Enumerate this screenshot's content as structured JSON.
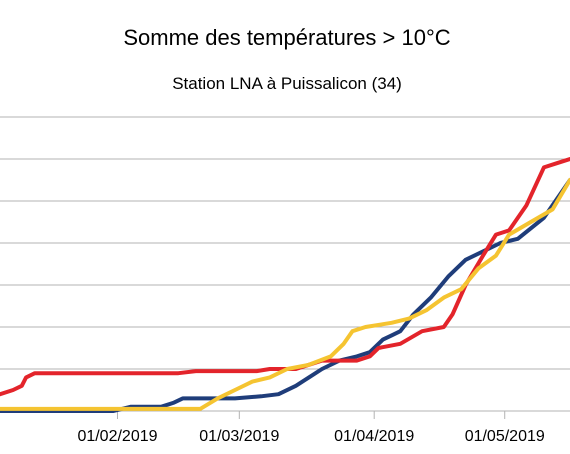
{
  "chart_data": {
    "type": "line",
    "title": "Somme des températures > 10°C",
    "subtitle": "Station LNA à Puissalicon (34)",
    "xlabel": "",
    "ylabel": "",
    "x_tick_labels": [
      "01/02/2019",
      "01/03/2019",
      "01/04/2019",
      "01/05/2019"
    ],
    "x_tick_dates": [
      "2019-02-01",
      "2019-03-01",
      "2019-04-01",
      "2019-05-01"
    ],
    "x_range": [
      "2019-01-05",
      "2019-05-16"
    ],
    "y_range": [
      0,
      7
    ],
    "y_gridlines": [
      0,
      1,
      2,
      3,
      4,
      5,
      6,
      7
    ],
    "y_tick_labels_visible": false,
    "grid": true,
    "legend": "none",
    "series": [
      {
        "color": "#1f3d7a",
        "points": [
          [
            "2019-01-05",
            0.0
          ],
          [
            "2019-01-31",
            0.0
          ],
          [
            "2019-02-02",
            0.05
          ],
          [
            "2019-02-04",
            0.1
          ],
          [
            "2019-02-11",
            0.1
          ],
          [
            "2019-02-14",
            0.2
          ],
          [
            "2019-02-16",
            0.3
          ],
          [
            "2019-02-28",
            0.3
          ],
          [
            "2019-03-06",
            0.35
          ],
          [
            "2019-03-10",
            0.4
          ],
          [
            "2019-03-14",
            0.6
          ],
          [
            "2019-03-17",
            0.8
          ],
          [
            "2019-03-20",
            1.0
          ],
          [
            "2019-03-24",
            1.2
          ],
          [
            "2019-03-28",
            1.3
          ],
          [
            "2019-03-31",
            1.4
          ],
          [
            "2019-04-03",
            1.7
          ],
          [
            "2019-04-05",
            1.8
          ],
          [
            "2019-04-07",
            1.9
          ],
          [
            "2019-04-10",
            2.3
          ],
          [
            "2019-04-14",
            2.7
          ],
          [
            "2019-04-18",
            3.2
          ],
          [
            "2019-04-22",
            3.6
          ],
          [
            "2019-04-26",
            3.8
          ],
          [
            "2019-04-30",
            4.0
          ],
          [
            "2019-05-04",
            4.1
          ],
          [
            "2019-05-10",
            4.6
          ],
          [
            "2019-05-16",
            5.5
          ]
        ]
      },
      {
        "color": "#e3242b",
        "points": [
          [
            "2019-01-05",
            0.4
          ],
          [
            "2019-01-08",
            0.5
          ],
          [
            "2019-01-10",
            0.6
          ],
          [
            "2019-01-11",
            0.8
          ],
          [
            "2019-01-13",
            0.9
          ],
          [
            "2019-01-31",
            0.9
          ],
          [
            "2019-02-15",
            0.9
          ],
          [
            "2019-02-19",
            0.95
          ],
          [
            "2019-03-05",
            0.95
          ],
          [
            "2019-03-08",
            1.0
          ],
          [
            "2019-03-14",
            1.0
          ],
          [
            "2019-03-17",
            1.1
          ],
          [
            "2019-03-20",
            1.2
          ],
          [
            "2019-03-28",
            1.2
          ],
          [
            "2019-03-31",
            1.3
          ],
          [
            "2019-04-02",
            1.5
          ],
          [
            "2019-04-07",
            1.6
          ],
          [
            "2019-04-12",
            1.9
          ],
          [
            "2019-04-17",
            2.0
          ],
          [
            "2019-04-19",
            2.3
          ],
          [
            "2019-04-22",
            3.0
          ],
          [
            "2019-04-26",
            3.7
          ],
          [
            "2019-04-29",
            4.2
          ],
          [
            "2019-05-02",
            4.3
          ],
          [
            "2019-05-06",
            4.9
          ],
          [
            "2019-05-10",
            5.8
          ],
          [
            "2019-05-13",
            5.9
          ],
          [
            "2019-05-16",
            6.0
          ]
        ]
      },
      {
        "color": "#f5c431",
        "points": [
          [
            "2019-01-05",
            0.05
          ],
          [
            "2019-01-31",
            0.05
          ],
          [
            "2019-02-10",
            0.05
          ],
          [
            "2019-02-20",
            0.05
          ],
          [
            "2019-02-24",
            0.3
          ],
          [
            "2019-02-28",
            0.5
          ],
          [
            "2019-03-04",
            0.7
          ],
          [
            "2019-03-08",
            0.8
          ],
          [
            "2019-03-12",
            1.0
          ],
          [
            "2019-03-17",
            1.1
          ],
          [
            "2019-03-22",
            1.3
          ],
          [
            "2019-03-25",
            1.6
          ],
          [
            "2019-03-27",
            1.9
          ],
          [
            "2019-03-30",
            2.0
          ],
          [
            "2019-04-05",
            2.1
          ],
          [
            "2019-04-09",
            2.2
          ],
          [
            "2019-04-13",
            2.4
          ],
          [
            "2019-04-17",
            2.7
          ],
          [
            "2019-04-21",
            2.9
          ],
          [
            "2019-04-25",
            3.4
          ],
          [
            "2019-04-29",
            3.7
          ],
          [
            "2019-05-02",
            4.2
          ],
          [
            "2019-05-07",
            4.5
          ],
          [
            "2019-05-12",
            4.8
          ],
          [
            "2019-05-16",
            5.5
          ]
        ]
      }
    ]
  }
}
